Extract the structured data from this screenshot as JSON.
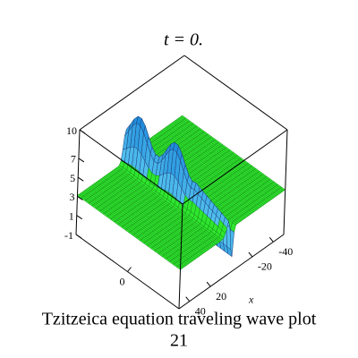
{
  "chart_data": {
    "type": "surface3d",
    "title": "t = 0.",
    "caption_lines": [
      "Tzitzeica equation  traveling wave plot",
      "21"
    ],
    "xlabel": "x",
    "xlim": [
      50,
      -50
    ],
    "xticks": [
      -40,
      -20,
      20,
      40
    ],
    "ylim": [
      -50,
      50
    ],
    "yticks": [
      0
    ],
    "zlim": [
      -1,
      10
    ],
    "zticks": [
      -1,
      1,
      3,
      5,
      7,
      10
    ]
  }
}
